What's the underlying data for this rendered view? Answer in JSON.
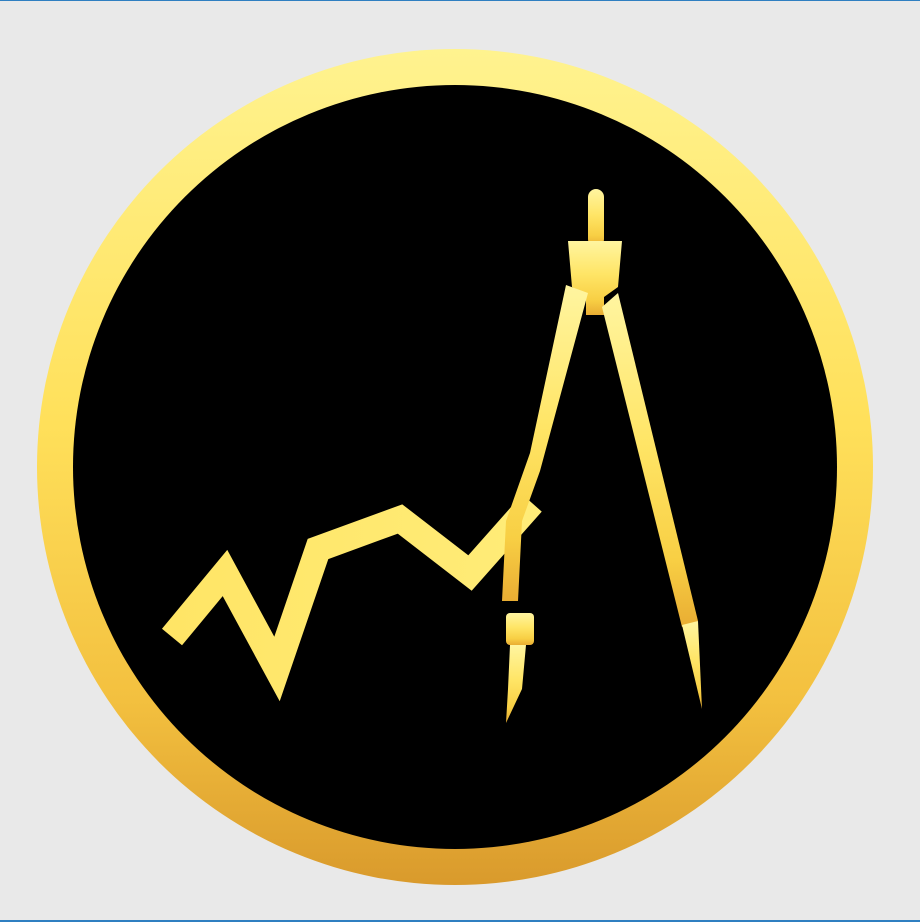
{
  "logo": {
    "icon": "compass-and-line-chart-icon",
    "colors": {
      "background": "#e9e9e9",
      "frame_line": "#2f7fc1",
      "disc": "#000000",
      "gold_light": "#fff38f",
      "gold_mid": "#f8d84a",
      "gold_dark": "#d99a2c"
    }
  }
}
